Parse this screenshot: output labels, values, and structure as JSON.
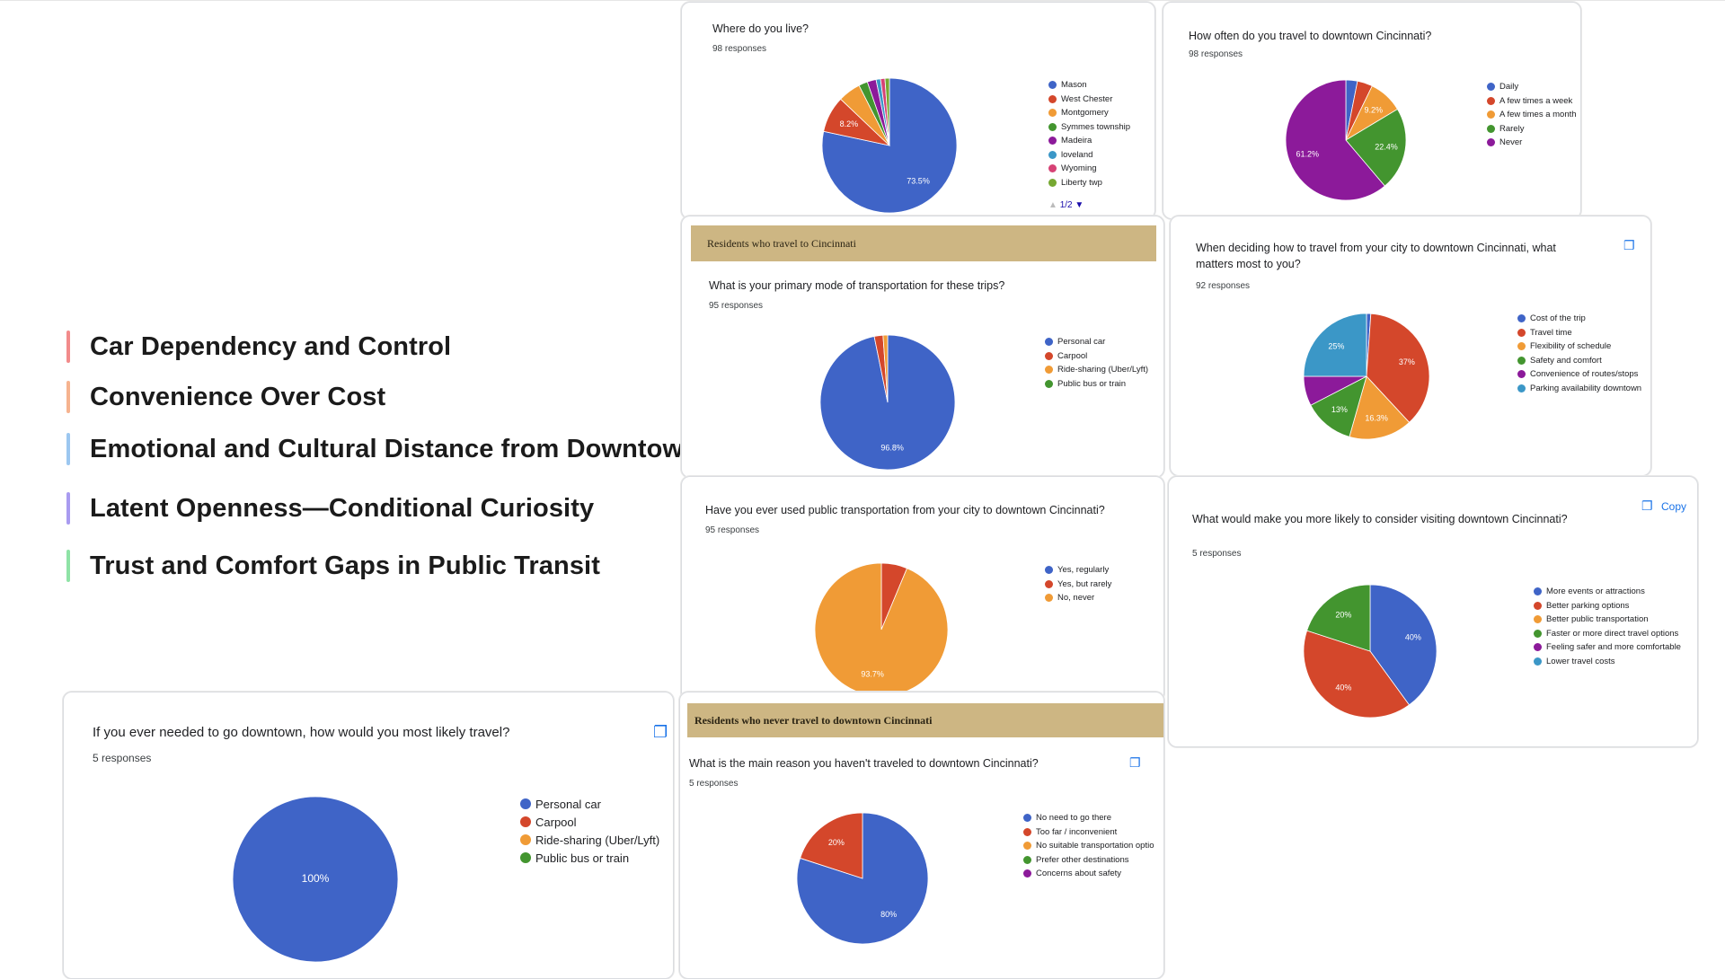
{
  "themes": [
    {
      "label": "Car Dependency and Control",
      "color": "#f28b8b"
    },
    {
      "label": "Convenience Over Cost",
      "color": "#f6b38f"
    },
    {
      "label": "Emotional and Cultural Distance from Downtown",
      "color": "#9cc7f0"
    },
    {
      "label": "Latent Openness—Conditional Curiosity",
      "color": "#a99bf0"
    },
    {
      "label": "Trust and Comfort Gaps in Public Transit",
      "color": "#8fe3a6"
    }
  ],
  "cards": {
    "live": {
      "question": "Where do you live?",
      "responses": "98 responses",
      "pager": "1/2"
    },
    "often": {
      "question": "How often do you travel to downtown Cincinnati?",
      "responses": "98 responses"
    },
    "mode": {
      "banner": "Residents who travel to Cincinnati",
      "question": "What is your primary mode of transportation for these trips?",
      "responses": "95 responses"
    },
    "matters": {
      "question_line1": "When deciding how to travel from your city to downtown Cincinnati, what",
      "question_line2": "matters most to you?",
      "responses": "92 responses"
    },
    "transit": {
      "question": "Have you ever used public transportation from your city to downtown Cincinnati?",
      "responses": "95 responses"
    },
    "likely": {
      "question": "What would make you more likely to consider visiting downtown Cincinnati?",
      "responses": "5 responses",
      "copy": "Copy"
    },
    "downtown": {
      "question": "If you ever needed to go downtown, how would you most likely travel?",
      "responses": "5 responses"
    },
    "never": {
      "banner": "Residents who never travel to downtown Cincinnati",
      "question": "What is the main reason you haven't traveled to downtown Cincinnati?",
      "responses": "5 responses"
    }
  },
  "chart_data": [
    {
      "id": "live",
      "type": "pie",
      "title": "Where do you live?",
      "categories": [
        "Mason",
        "West Chester",
        "Montgomery",
        "Symmes township",
        "Madeira",
        "loveland",
        "Wyoming",
        "Liberty twp"
      ],
      "values": [
        73.5,
        8.2,
        5.1,
        2.0,
        2.0,
        1.0,
        1.0,
        1.0
      ],
      "colors": [
        "#3f64c7",
        "#d4472b",
        "#f09b36",
        "#43952f",
        "#8c1a9a",
        "#3b97c7",
        "#d64275",
        "#76a832"
      ],
      "labels": [
        "73.5%",
        "8.2%",
        "",
        "",
        "",
        "",
        "",
        ""
      ]
    },
    {
      "id": "often",
      "type": "pie",
      "title": "How often do you travel to downtown Cincinnati?",
      "categories": [
        "Daily",
        "A few times a week",
        "A few times a month",
        "Rarely",
        "Never"
      ],
      "values": [
        3.1,
        4.1,
        9.2,
        22.4,
        61.2
      ],
      "colors": [
        "#3f64c7",
        "#d4472b",
        "#f09b36",
        "#43952f",
        "#8c1a9a"
      ],
      "labels": [
        "",
        "",
        "9.2%",
        "22.4%",
        "61.2%"
      ]
    },
    {
      "id": "mode",
      "type": "pie",
      "title": "What is your primary mode of transportation for these trips?",
      "categories": [
        "Personal car",
        "Carpool",
        "Ride-sharing (Uber/Lyft)",
        "Public bus or train"
      ],
      "values": [
        96.8,
        2.1,
        1.1,
        0
      ],
      "colors": [
        "#3f64c7",
        "#d4472b",
        "#f09b36",
        "#43952f"
      ],
      "labels": [
        "96.8%",
        "",
        "",
        ""
      ]
    },
    {
      "id": "matters",
      "type": "pie",
      "title": "When deciding how to travel from your city to downtown Cincinnati, what matters most to you?",
      "categories": [
        "Cost of the trip",
        "Travel time",
        "Flexibility of schedule",
        "Safety and comfort",
        "Convenience of routes/stops",
        "Parking availability downtown"
      ],
      "values": [
        1.1,
        37,
        16.3,
        13,
        7.6,
        25
      ],
      "colors": [
        "#3f64c7",
        "#d4472b",
        "#f09b36",
        "#43952f",
        "#8c1a9a",
        "#3b97c7"
      ],
      "labels": [
        "",
        "37%",
        "16.3%",
        "13%",
        "",
        "25%"
      ]
    },
    {
      "id": "transit",
      "type": "pie",
      "title": "Have you ever used public transportation from your city to downtown Cincinnati?",
      "categories": [
        "Yes, regularly",
        "Yes, but rarely",
        "No, never"
      ],
      "values": [
        0,
        6.3,
        93.7
      ],
      "colors": [
        "#3f64c7",
        "#d4472b",
        "#f09b36"
      ],
      "labels": [
        "",
        "",
        "93.7%"
      ]
    },
    {
      "id": "likely",
      "type": "pie",
      "title": "What would make you more likely to consider visiting downtown Cincinnati?",
      "categories": [
        "More events or attractions",
        "Better parking options",
        "Better public transportation",
        "Faster or more direct travel options",
        "Feeling safer and more comfortable",
        "Lower travel costs"
      ],
      "values": [
        40,
        40,
        0,
        20,
        0,
        0
      ],
      "colors": [
        "#3f64c7",
        "#d4472b",
        "#f09b36",
        "#43952f",
        "#8c1a9a",
        "#3b97c7"
      ],
      "labels": [
        "40%",
        "40%",
        "",
        "20%",
        "",
        ""
      ]
    },
    {
      "id": "downtown",
      "type": "pie",
      "title": "If you ever needed to go downtown, how would you most likely travel?",
      "categories": [
        "Personal car",
        "Carpool",
        "Ride-sharing (Uber/Lyft)",
        "Public bus or train"
      ],
      "values": [
        100,
        0,
        0,
        0
      ],
      "colors": [
        "#3f64c7",
        "#d4472b",
        "#f09b36",
        "#43952f"
      ],
      "labels": [
        "100%",
        "",
        "",
        ""
      ]
    },
    {
      "id": "never",
      "type": "pie",
      "title": "What is the main reason you haven't traveled to downtown Cincinnati?",
      "categories": [
        "No need to go there",
        "Too far / inconvenient",
        "No suitable transportation optio",
        "Prefer other destinations",
        "Concerns about safety"
      ],
      "values": [
        80,
        20,
        0,
        0,
        0
      ],
      "colors": [
        "#3f64c7",
        "#d4472b",
        "#f09b36",
        "#43952f",
        "#8c1a9a"
      ],
      "labels": [
        "80%",
        "20%",
        "",
        "",
        ""
      ]
    }
  ]
}
